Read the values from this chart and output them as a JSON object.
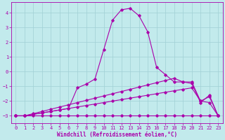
{
  "xlabel": "Windchill (Refroidissement éolien,°C)",
  "xlim": [
    -0.5,
    23.5
  ],
  "ylim": [
    -3.5,
    4.7
  ],
  "yticks": [
    -3,
    -2,
    -1,
    0,
    1,
    2,
    3,
    4
  ],
  "xticks": [
    0,
    1,
    2,
    3,
    4,
    5,
    6,
    7,
    8,
    9,
    10,
    11,
    12,
    13,
    14,
    15,
    16,
    17,
    18,
    19,
    20,
    21,
    22,
    23
  ],
  "background_color": "#c2eaec",
  "grid_color": "#a0d0d4",
  "line_color": "#aa00aa",
  "series": [
    {
      "x": [
        0,
        1,
        2,
        3,
        4,
        5,
        6,
        7,
        8,
        9,
        10,
        11,
        12,
        13,
        14,
        15,
        16,
        17,
        18,
        19,
        20,
        21,
        22,
        23
      ],
      "y": [
        -3.0,
        -3.0,
        -3.0,
        -3.0,
        -3.0,
        -3.0,
        -3.0,
        -3.0,
        -3.0,
        -3.0,
        -3.0,
        -3.0,
        -3.0,
        -3.0,
        -3.0,
        -3.0,
        -3.0,
        -3.0,
        -3.0,
        -3.0,
        -3.0,
        -3.0,
        -3.0,
        -3.0
      ]
    },
    {
      "x": [
        0,
        1,
        2,
        3,
        4,
        5,
        6,
        7,
        8,
        9,
        10,
        11,
        12,
        13,
        14,
        15,
        16,
        17,
        18,
        19,
        20,
        21,
        22,
        23
      ],
      "y": [
        -3.0,
        -3.0,
        -2.9,
        -2.8,
        -2.7,
        -2.6,
        -2.5,
        -2.4,
        -2.3,
        -2.2,
        -2.1,
        -2.0,
        -1.9,
        -1.8,
        -1.7,
        -1.6,
        -1.5,
        -1.4,
        -1.3,
        -1.2,
        -1.1,
        -2.0,
        -1.7,
        -3.0
      ]
    },
    {
      "x": [
        0,
        1,
        2,
        3,
        4,
        5,
        6,
        7,
        8,
        9,
        10,
        11,
        12,
        13,
        14,
        15,
        16,
        17,
        18,
        19,
        20,
        21,
        22,
        23
      ],
      "y": [
        -3.0,
        -3.0,
        -2.85,
        -2.7,
        -2.55,
        -2.4,
        -2.25,
        -2.1,
        -1.95,
        -1.8,
        -1.65,
        -1.5,
        -1.35,
        -1.2,
        -1.05,
        -0.9,
        -0.75,
        -0.6,
        -0.45,
        -0.7,
        -0.8,
        -2.1,
        -1.6,
        -3.0
      ]
    },
    {
      "x": [
        0,
        1,
        2,
        3,
        4,
        5,
        6,
        7,
        8,
        9,
        10,
        11,
        12,
        13,
        14,
        15,
        16,
        17,
        18,
        19,
        20,
        21,
        22,
        23
      ],
      "y": [
        -3.0,
        -3.0,
        -2.9,
        -2.8,
        -2.7,
        -2.6,
        -2.5,
        -1.1,
        -0.85,
        -0.5,
        1.5,
        3.5,
        4.2,
        4.3,
        3.8,
        2.7,
        0.3,
        -0.2,
        -0.7,
        -0.7,
        -0.7,
        -2.0,
        -2.1,
        -3.0
      ]
    }
  ]
}
